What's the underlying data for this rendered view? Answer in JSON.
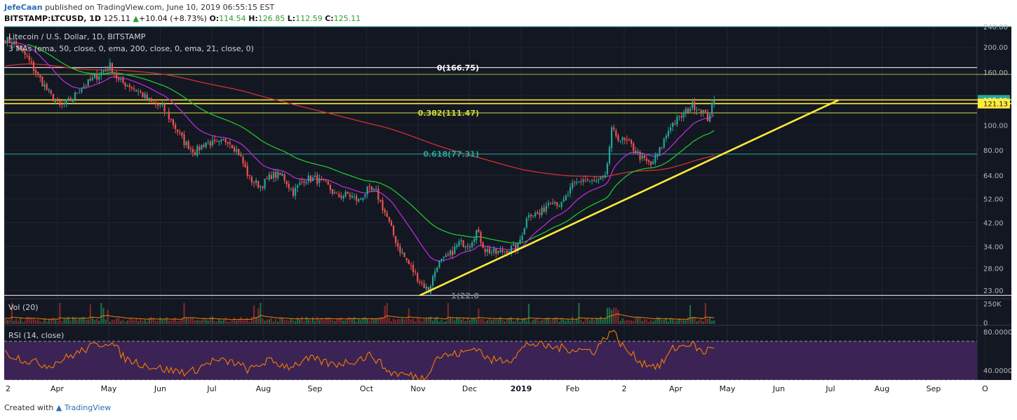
{
  "header": {
    "author": "JefeCaan",
    "published_text": "published on TradingView.com, June 10, 2019 06:55:15 EST",
    "symbol": "BITSTAMP:LTCUSD, 1D",
    "last": "125.11",
    "up_arrow": "▲",
    "change": "+10.04 (+8.73%)",
    "o_label": "O:",
    "o_val": "114.54",
    "h_label": "H:",
    "h_val": "126.85",
    "l_label": "L:",
    "l_val": "112.59",
    "c_label": "C:",
    "c_val": "125.11"
  },
  "footer": {
    "created_with": "Created with",
    "brand": "TradingView"
  },
  "colors": {
    "background": "#131722",
    "up": "#26a69a",
    "down": "#ef5350",
    "ema50": "#22c32e",
    "ema200": "#d32f2f",
    "ema21": "#b82bd8",
    "trendline": "#ffeb3b",
    "rsi_band": "#3b2355",
    "rsi_line": "#f57c00"
  },
  "chart_data": [
    {
      "type": "candlestick",
      "title": "Litecoin / U.S. Dollar, 1D, BITSTAMP",
      "indicator_label": "3 MAs (ema, 50, close, 0, ema, 200, close, 0, ema, 21, close, 0)",
      "y_scale": "log",
      "ylim": [
        21.5,
        240
      ],
      "y_ticks": [
        "240.00",
        "200.00",
        "160.00",
        "125.11",
        "121.13",
        "100.00",
        "80.00",
        "64.00",
        "52.00",
        "42.00",
        "34.00",
        "28.00",
        "23.00"
      ],
      "x_ticks": [
        "2",
        "Apr",
        "May",
        "Jun",
        "Jul",
        "Aug",
        "Sep",
        "Oct",
        "Nov",
        "Dec",
        "2019",
        "Feb",
        "2",
        "Apr",
        "May",
        "Jun",
        "Jul",
        "Aug",
        "Sep",
        "O"
      ],
      "price_badges": [
        {
          "label": "125.11",
          "value": 125.11,
          "color": "#26a69a"
        },
        {
          "label": "121.13",
          "value": 121.13,
          "color": "#ffeb3b"
        }
      ],
      "fib_levels": [
        {
          "label": "0(166.75)",
          "value": 166.75
        },
        {
          "label": "0.382(111.47)",
          "value": 111.47
        },
        {
          "label": "0.618(77.31)",
          "value": 77.31
        },
        {
          "label": "1(22.0",
          "value": 22.0
        }
      ],
      "horizontal_lines": [
        {
          "value": 240,
          "color": "#26a69a"
        },
        {
          "value": 157,
          "color": "#8bc34a"
        },
        {
          "value": 166.75,
          "color": "#ffffff"
        },
        {
          "value": 125.11,
          "color": "#ffeb3b"
        },
        {
          "value": 121.13,
          "color": "#ffeb3b"
        },
        {
          "value": 111.47,
          "color": "#cddc39"
        },
        {
          "value": 77.31,
          "color": "#26a69a"
        },
        {
          "value": 22.0,
          "color": "#ffffff"
        }
      ],
      "trendline": [
        {
          "x": 0,
          "y": 22
        },
        {
          "x": 1,
          "y": 125
        }
      ],
      "close_anchors": [
        [
          0,
          215
        ],
        [
          5,
          205
        ],
        [
          10,
          182
        ],
        [
          15,
          155
        ],
        [
          20,
          133
        ],
        [
          25,
          118
        ],
        [
          30,
          125
        ],
        [
          35,
          140
        ],
        [
          40,
          150
        ],
        [
          45,
          162
        ],
        [
          48,
          170
        ],
        [
          52,
          148
        ],
        [
          57,
          142
        ],
        [
          62,
          133
        ],
        [
          67,
          122
        ],
        [
          72,
          117
        ],
        [
          77,
          101
        ],
        [
          82,
          86
        ],
        [
          87,
          79
        ],
        [
          92,
          86
        ],
        [
          97,
          84
        ],
        [
          102,
          88
        ],
        [
          107,
          78
        ],
        [
          112,
          62
        ],
        [
          117,
          58
        ],
        [
          122,
          64
        ],
        [
          127,
          64
        ],
        [
          132,
          55
        ],
        [
          137,
          62
        ],
        [
          142,
          62
        ],
        [
          147,
          59
        ],
        [
          152,
          53
        ],
        [
          157,
          54
        ],
        [
          162,
          51
        ],
        [
          166,
          56
        ],
        [
          170,
          55
        ],
        [
          175,
          44
        ],
        [
          180,
          34
        ],
        [
          185,
          29
        ],
        [
          190,
          25
        ],
        [
          194,
          23
        ],
        [
          198,
          29
        ],
        [
          203,
          31
        ],
        [
          208,
          35
        ],
        [
          213,
          35
        ],
        [
          216,
          39
        ],
        [
          220,
          33
        ],
        [
          225,
          32
        ],
        [
          230,
          33
        ],
        [
          235,
          34
        ],
        [
          240,
          46
        ],
        [
          245,
          45
        ],
        [
          250,
          52
        ],
        [
          255,
          49
        ],
        [
          260,
          58
        ],
        [
          265,
          62
        ],
        [
          270,
          60
        ],
        [
          275,
          62
        ],
        [
          278,
          95
        ],
        [
          282,
          88
        ],
        [
          286,
          85
        ],
        [
          292,
          74
        ],
        [
          296,
          70
        ],
        [
          300,
          80
        ],
        [
          305,
          100
        ],
        [
          310,
          108
        ],
        [
          315,
          120
        ],
        [
          320,
          113
        ],
        [
          322,
          106
        ],
        [
          325,
          125
        ]
      ]
    },
    {
      "type": "volume",
      "label": "Vol (20)",
      "y_ticks": [
        "250K",
        "0"
      ]
    },
    {
      "type": "line",
      "label": "RSI (14, close)",
      "ylim": [
        30,
        85
      ],
      "y_ticks": [
        "80.0000",
        "40.0000"
      ],
      "band": [
        30,
        70
      ],
      "anchors": [
        [
          0,
          58
        ],
        [
          10,
          50
        ],
        [
          20,
          45
        ],
        [
          30,
          55
        ],
        [
          40,
          65
        ],
        [
          48,
          70
        ],
        [
          55,
          52
        ],
        [
          65,
          45
        ],
        [
          75,
          40
        ],
        [
          85,
          38
        ],
        [
          95,
          50
        ],
        [
          105,
          48
        ],
        [
          112,
          40
        ],
        [
          120,
          50
        ],
        [
          130,
          44
        ],
        [
          140,
          52
        ],
        [
          150,
          46
        ],
        [
          160,
          50
        ],
        [
          168,
          56
        ],
        [
          176,
          38
        ],
        [
          185,
          35
        ],
        [
          192,
          32
        ],
        [
          198,
          54
        ],
        [
          210,
          58
        ],
        [
          216,
          64
        ],
        [
          222,
          50
        ],
        [
          232,
          52
        ],
        [
          240,
          68
        ],
        [
          250,
          64
        ],
        [
          260,
          62
        ],
        [
          270,
          60
        ],
        [
          278,
          82
        ],
        [
          284,
          62
        ],
        [
          292,
          48
        ],
        [
          300,
          44
        ],
        [
          306,
          62
        ],
        [
          314,
          68
        ],
        [
          320,
          58
        ],
        [
          325,
          66
        ]
      ]
    }
  ]
}
